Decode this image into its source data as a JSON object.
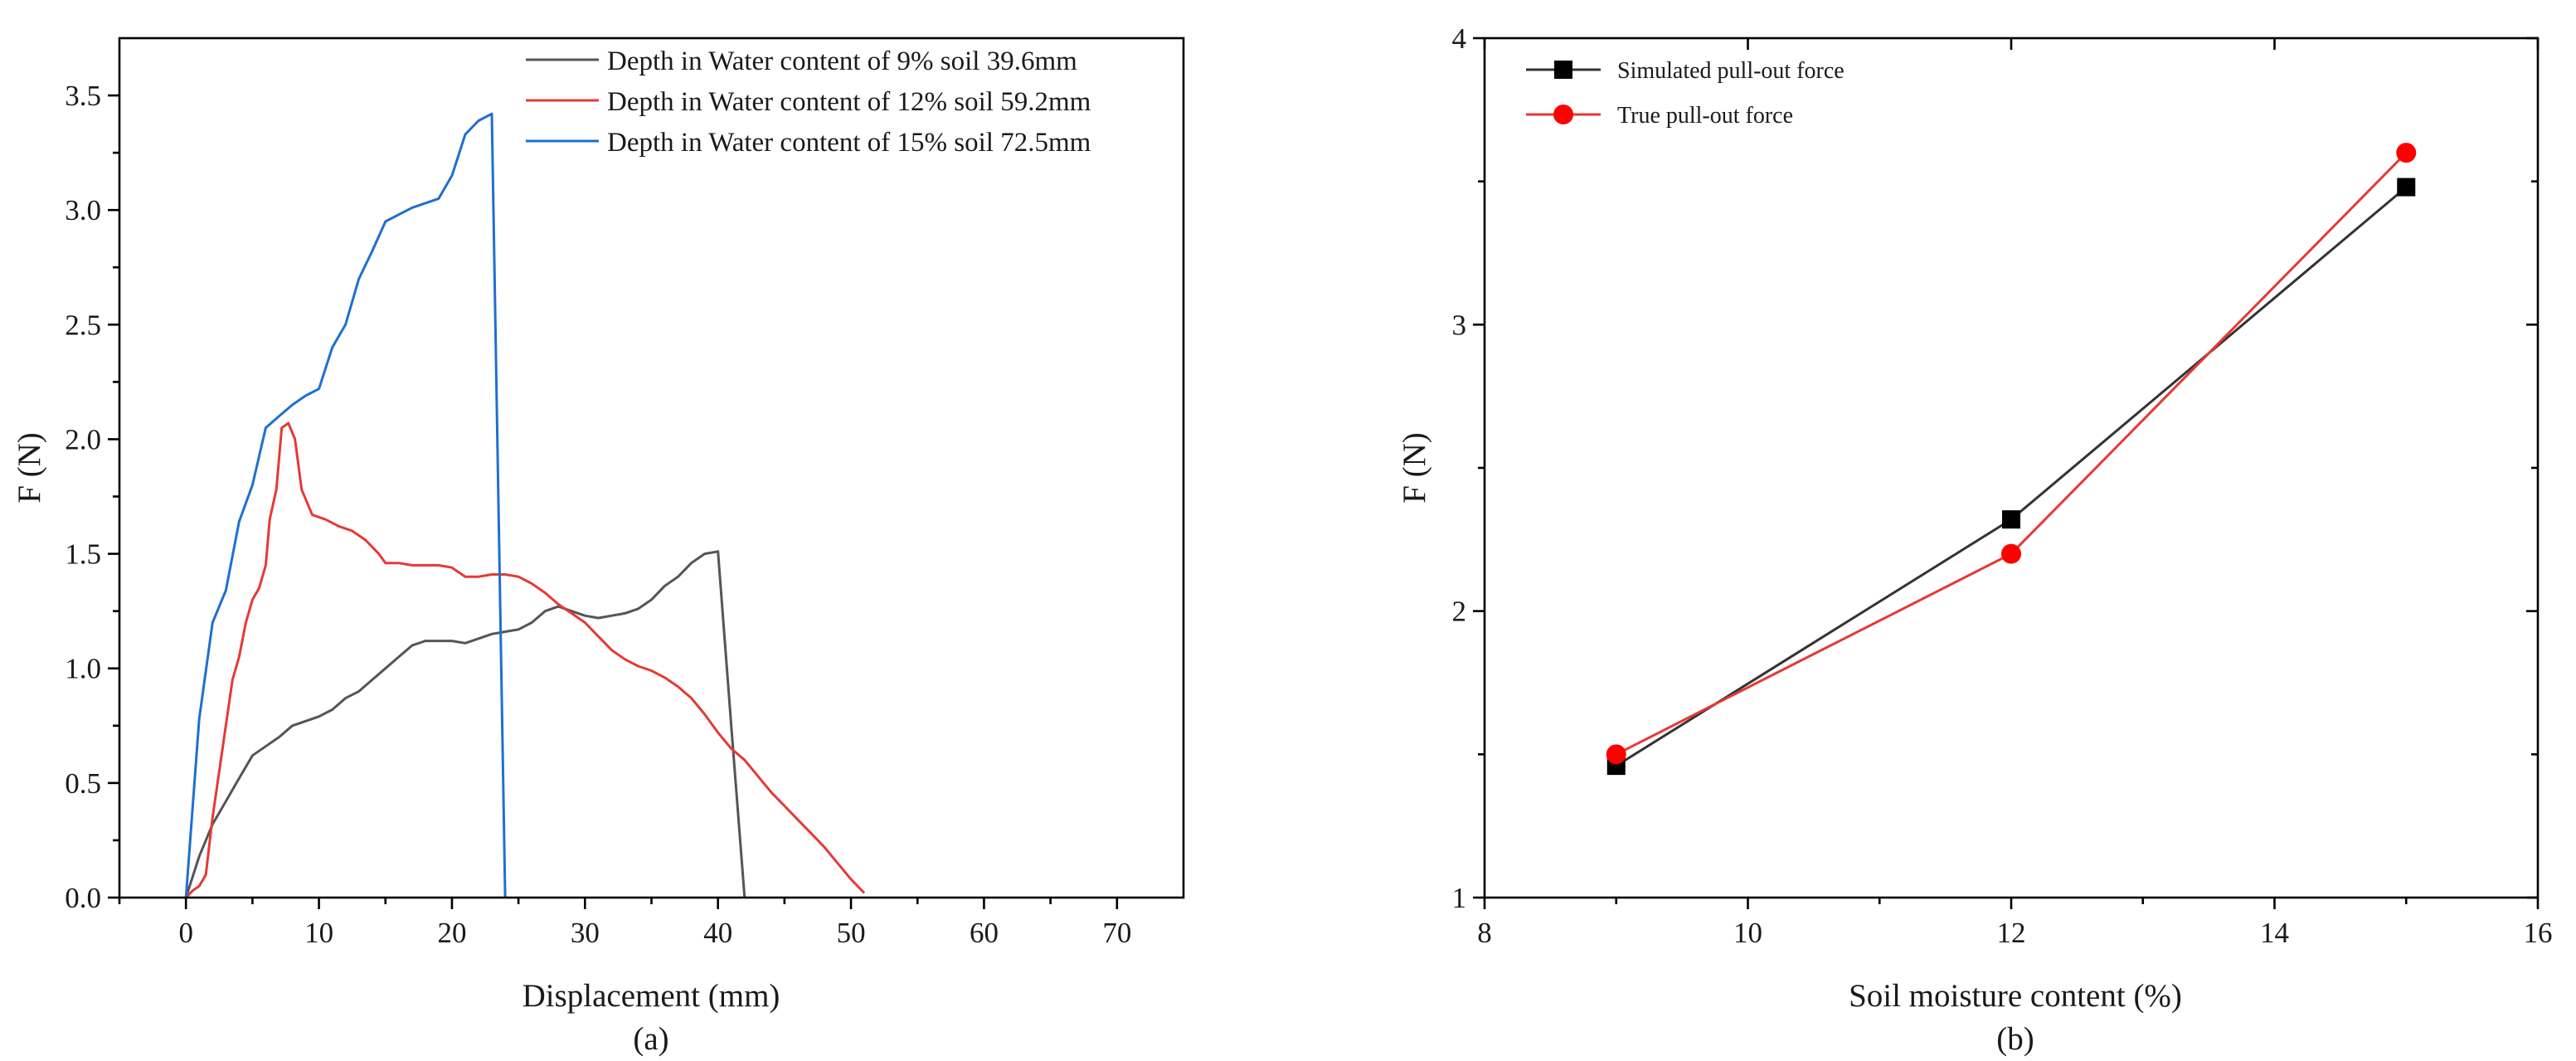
{
  "panels": [
    {
      "panel_label": "(a)",
      "legend_entries": [
        "Depth in Water content of 9% soil 39.6mm",
        "Depth in Water content of 12% soil 59.2mm",
        "Depth in Water content of 15% soil 72.5mm"
      ]
    },
    {
      "panel_label": "(b)",
      "legend_entries": [
        "Simulated pull-out force",
        "True pull-out force"
      ]
    }
  ],
  "chart_data": [
    {
      "type": "line",
      "xlabel": "Displacement (mm)",
      "ylabel": "F (N)",
      "xlim": [
        -5,
        75
      ],
      "ylim": [
        0,
        3.75
      ],
      "xticks": [
        0,
        10,
        20,
        30,
        40,
        50,
        60,
        70
      ],
      "yticks": [
        0.0,
        0.5,
        1.0,
        1.5,
        2.0,
        2.5,
        3.0,
        3.5
      ],
      "ytick_labels": [
        "0.0",
        "0.5",
        "1.0",
        "1.5",
        "2.0",
        "2.5",
        "3.0",
        "3.5"
      ],
      "legend_position": "top-right",
      "grid": false,
      "series": [
        {
          "name": "Depth in Water content of 9% soil 39.6mm",
          "color": "#555555",
          "points": [
            [
              0,
              0
            ],
            [
              1,
              0.18
            ],
            [
              2,
              0.32
            ],
            [
              3,
              0.42
            ],
            [
              4,
              0.52
            ],
            [
              5,
              0.62
            ],
            [
              6,
              0.66
            ],
            [
              7,
              0.7
            ],
            [
              8,
              0.75
            ],
            [
              9,
              0.77
            ],
            [
              10,
              0.79
            ],
            [
              11,
              0.82
            ],
            [
              12,
              0.87
            ],
            [
              13,
              0.9
            ],
            [
              14,
              0.95
            ],
            [
              15,
              1.0
            ],
            [
              16,
              1.05
            ],
            [
              17,
              1.1
            ],
            [
              18,
              1.12
            ],
            [
              19,
              1.12
            ],
            [
              20,
              1.12
            ],
            [
              21,
              1.11
            ],
            [
              22,
              1.13
            ],
            [
              23,
              1.15
            ],
            [
              24,
              1.16
            ],
            [
              25,
              1.17
            ],
            [
              26,
              1.2
            ],
            [
              27,
              1.25
            ],
            [
              28,
              1.27
            ],
            [
              29,
              1.25
            ],
            [
              30,
              1.23
            ],
            [
              31,
              1.22
            ],
            [
              32,
              1.23
            ],
            [
              33,
              1.24
            ],
            [
              34,
              1.26
            ],
            [
              35,
              1.3
            ],
            [
              36,
              1.36
            ],
            [
              37,
              1.4
            ],
            [
              38,
              1.46
            ],
            [
              39,
              1.5
            ],
            [
              40,
              1.51
            ],
            [
              41,
              0.75
            ],
            [
              42,
              0
            ]
          ]
        },
        {
          "name": "Depth in Water content of 12% soil 59.2mm",
          "color": "#e53935",
          "points": [
            [
              0,
              0
            ],
            [
              0.5,
              0.03
            ],
            [
              1,
              0.05
            ],
            [
              1.5,
              0.1
            ],
            [
              2,
              0.35
            ],
            [
              2.5,
              0.55
            ],
            [
              3,
              0.75
            ],
            [
              3.5,
              0.95
            ],
            [
              4,
              1.05
            ],
            [
              4.5,
              1.2
            ],
            [
              5,
              1.3
            ],
            [
              5.5,
              1.35
            ],
            [
              6,
              1.45
            ],
            [
              6.3,
              1.65
            ],
            [
              6.8,
              1.78
            ],
            [
              7.2,
              2.05
            ],
            [
              7.7,
              2.07
            ],
            [
              8.2,
              2.0
            ],
            [
              8.7,
              1.78
            ],
            [
              9.5,
              1.67
            ],
            [
              10.5,
              1.65
            ],
            [
              11.5,
              1.62
            ],
            [
              12.5,
              1.6
            ],
            [
              13.5,
              1.56
            ],
            [
              14.5,
              1.5
            ],
            [
              15,
              1.46
            ],
            [
              16,
              1.46
            ],
            [
              17,
              1.45
            ],
            [
              18,
              1.45
            ],
            [
              19,
              1.45
            ],
            [
              20,
              1.44
            ],
            [
              21,
              1.4
            ],
            [
              22,
              1.4
            ],
            [
              23,
              1.41
            ],
            [
              24,
              1.41
            ],
            [
              25,
              1.4
            ],
            [
              26,
              1.37
            ],
            [
              27,
              1.33
            ],
            [
              28,
              1.28
            ],
            [
              29,
              1.24
            ],
            [
              30,
              1.2
            ],
            [
              31,
              1.14
            ],
            [
              32,
              1.08
            ],
            [
              33,
              1.04
            ],
            [
              34,
              1.01
            ],
            [
              35,
              0.99
            ],
            [
              36,
              0.96
            ],
            [
              37,
              0.92
            ],
            [
              38,
              0.87
            ],
            [
              39,
              0.8
            ],
            [
              40,
              0.72
            ],
            [
              41,
              0.65
            ],
            [
              42,
              0.6
            ],
            [
              43,
              0.53
            ],
            [
              44,
              0.46
            ],
            [
              45,
              0.4
            ],
            [
              46,
              0.34
            ],
            [
              47,
              0.28
            ],
            [
              48,
              0.22
            ],
            [
              49,
              0.15
            ],
            [
              50,
              0.08
            ],
            [
              51,
              0.02
            ]
          ]
        },
        {
          "name": "Depth in Water content of 15% soil 72.5mm",
          "color": "#1f6fd1",
          "points": [
            [
              0,
              0
            ],
            [
              1,
              0.78
            ],
            [
              2,
              1.2
            ],
            [
              3,
              1.34
            ],
            [
              4,
              1.64
            ],
            [
              5,
              1.8
            ],
            [
              6,
              2.05
            ],
            [
              7,
              2.1
            ],
            [
              8,
              2.15
            ],
            [
              9,
              2.19
            ],
            [
              10,
              2.22
            ],
            [
              11,
              2.4
            ],
            [
              12,
              2.5
            ],
            [
              13,
              2.7
            ],
            [
              14,
              2.82
            ],
            [
              15,
              2.95
            ],
            [
              16,
              2.98
            ],
            [
              17,
              3.01
            ],
            [
              18,
              3.03
            ],
            [
              19,
              3.05
            ],
            [
              20,
              3.15
            ],
            [
              21,
              3.33
            ],
            [
              22,
              3.39
            ],
            [
              23,
              3.42
            ],
            [
              24,
              0
            ]
          ]
        }
      ]
    },
    {
      "type": "line",
      "xlabel": "Soil moisture content (%)",
      "ylabel": "F (N)",
      "xlim": [
        8,
        16
      ],
      "ylim": [
        1,
        4
      ],
      "xticks": [
        8,
        10,
        12,
        14,
        16
      ],
      "yticks": [
        1,
        2,
        3,
        4
      ],
      "legend_position": "top-left",
      "grid": false,
      "series": [
        {
          "name": "Simulated pull-out force",
          "color": "#333333",
          "marker": "square",
          "marker_color": "#000000",
          "x": [
            9,
            12,
            15
          ],
          "y": [
            1.46,
            2.32,
            3.48
          ]
        },
        {
          "name": "True pull-out force",
          "color": "#e53935",
          "marker": "circle",
          "marker_color": "#ff0000",
          "x": [
            9,
            12,
            15
          ],
          "y": [
            1.5,
            2.2,
            3.6
          ]
        }
      ]
    }
  ]
}
